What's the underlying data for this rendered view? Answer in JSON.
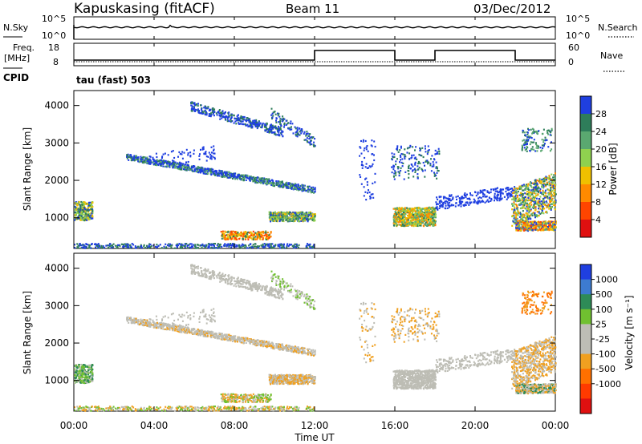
{
  "header": {
    "station": "Kapuskasing (fitACF)",
    "beam": "Beam 11",
    "date": "03/Dec/2012"
  },
  "colors": {
    "power_scale": [
      "#1f3fe0",
      "#2e7d5a",
      "#5aa870",
      "#8fd14f",
      "#f0c000",
      "#ff8a00",
      "#ff4500",
      "#e01010"
    ],
    "velocity_scale": [
      "#1f3fe0",
      "#3d7bd0",
      "#2e8b57",
      "#70c030",
      "#bdbdb5",
      "#bdbdb5",
      "#f0a020",
      "#ff7000",
      "#ff3a00",
      "#e01010"
    ]
  },
  "chart_data": [
    {
      "type": "line",
      "name": "noise-panel",
      "left_labels": [
        "N.Sky"
      ],
      "right_labels": [
        "N.Search"
      ],
      "left_ticks": [
        "10^5",
        "10^0"
      ],
      "right_ticks": [
        "10^5",
        "10^0"
      ]
    },
    {
      "type": "line",
      "name": "freq-nave-panel",
      "left_labels": [
        "Freq.",
        "[MHz]"
      ],
      "right_labels": [
        "Nave"
      ],
      "left_ticks": [
        "18",
        "8"
      ],
      "right_ticks": [
        "60",
        "0"
      ],
      "freq_steps": [
        {
          "from": "00:00",
          "to": "12:00",
          "level": "low"
        },
        {
          "from": "12:00",
          "to": "16:00",
          "level": "high"
        },
        {
          "from": "16:00",
          "to": "18:00",
          "level": "low"
        },
        {
          "from": "18:00",
          "to": "22:00",
          "level": "high"
        },
        {
          "from": "22:00",
          "to": "00:00",
          "level": "low"
        }
      ]
    },
    {
      "type": "heatmap",
      "name": "power",
      "cpid_label": "CPID",
      "program": "tau (fast) 503",
      "ylabel": "Slant Range [km]",
      "yticks": [
        "4000",
        "3000",
        "2000",
        "1000"
      ],
      "ylim": [
        180,
        4400
      ],
      "colorbar_label": "Power [dB]",
      "colorbar_ticks": [
        "28",
        "24",
        "20",
        "16",
        "12",
        "8",
        "4"
      ],
      "colorbar_range": [
        0,
        32
      ]
    },
    {
      "type": "heatmap",
      "name": "velocity",
      "ylabel": "Slant Range [km]",
      "yticks": [
        "4000",
        "3000",
        "2000",
        "1000"
      ],
      "ylim": [
        180,
        4400
      ],
      "colorbar_label": "Velocity [m s⁻¹]",
      "colorbar_ticks": [
        "1000",
        "500",
        "100",
        "25",
        "-25",
        "-100",
        "-500",
        "-1000"
      ]
    }
  ],
  "x_axis": {
    "ticks": [
      "00:00",
      "04:00",
      "08:00",
      "12:00",
      "16:00",
      "20:00",
      "00:00"
    ],
    "label": "Time UT"
  }
}
